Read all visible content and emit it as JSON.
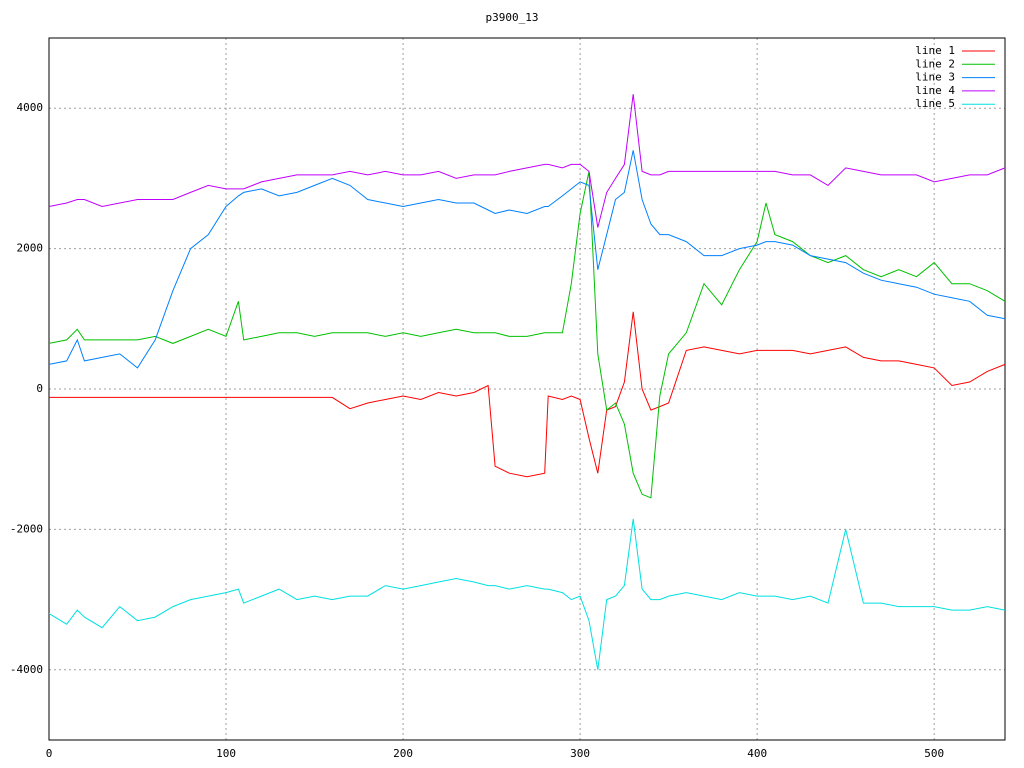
{
  "chart_data": {
    "type": "line",
    "title": "p3900_13",
    "x": [
      0,
      10,
      16,
      20,
      30,
      40,
      50,
      60,
      70,
      80,
      90,
      100,
      107,
      110,
      120,
      130,
      140,
      150,
      160,
      170,
      180,
      190,
      200,
      210,
      220,
      230,
      240,
      248,
      252,
      260,
      270,
      280,
      282,
      290,
      295,
      300,
      305,
      310,
      315,
      320,
      325,
      330,
      335,
      340,
      345,
      350,
      360,
      370,
      380,
      390,
      400,
      405,
      410,
      420,
      430,
      440,
      450,
      460,
      470,
      480,
      490,
      500,
      510,
      520,
      530,
      540
    ],
    "series": [
      {
        "name": "line 1",
        "color": "#ff0000",
        "values": [
          -120,
          -120,
          -120,
          -120,
          -120,
          -120,
          -120,
          -120,
          -120,
          -120,
          -120,
          -120,
          -120,
          -120,
          -120,
          -120,
          -120,
          -120,
          -120,
          -280,
          -200,
          -150,
          -100,
          -150,
          -50,
          -100,
          -50,
          50,
          -1100,
          -1200,
          -1250,
          -1200,
          -100,
          -150,
          -100,
          -150,
          -700,
          -1200,
          -300,
          -250,
          100,
          1100,
          0,
          -300,
          -250,
          -200,
          550,
          600,
          550,
          500,
          550,
          550,
          550,
          550,
          500,
          550,
          600,
          450,
          400,
          400,
          350,
          300,
          50,
          100,
          250,
          350
        ]
      },
      {
        "name": "line 2",
        "color": "#00c000",
        "values": [
          650,
          700,
          850,
          700,
          700,
          700,
          700,
          750,
          650,
          750,
          850,
          750,
          1250,
          700,
          750,
          800,
          800,
          750,
          800,
          800,
          800,
          750,
          800,
          750,
          800,
          850,
          800,
          800,
          800,
          750,
          750,
          800,
          800,
          800,
          1500,
          2500,
          3100,
          500,
          -300,
          -200,
          -500,
          -1200,
          -1500,
          -1550,
          -100,
          500,
          800,
          1500,
          1200,
          1700,
          2100,
          2650,
          2200,
          2100,
          1900,
          1800,
          1900,
          1700,
          1600,
          1700,
          1600,
          1800,
          1500,
          1500,
          1400,
          1250
        ]
      },
      {
        "name": "line 3",
        "color": "#0080ff",
        "values": [
          350,
          400,
          700,
          400,
          450,
          500,
          300,
          700,
          1400,
          2000,
          2200,
          2600,
          2750,
          2800,
          2850,
          2750,
          2800,
          2900,
          3000,
          2900,
          2700,
          2650,
          2600,
          2650,
          2700,
          2650,
          2650,
          2550,
          2500,
          2550,
          2500,
          2600,
          2600,
          2750,
          2850,
          2950,
          2900,
          1700,
          2200,
          2700,
          2800,
          3400,
          2700,
          2350,
          2200,
          2200,
          2100,
          1900,
          1900,
          2000,
          2050,
          2100,
          2100,
          2050,
          1900,
          1850,
          1800,
          1650,
          1550,
          1500,
          1450,
          1350,
          1300,
          1250,
          1050,
          1000
        ]
      },
      {
        "name": "line 4",
        "color": "#c000ff",
        "values": [
          2600,
          2650,
          2700,
          2700,
          2600,
          2650,
          2700,
          2700,
          2700,
          2800,
          2900,
          2850,
          2850,
          2850,
          2950,
          3000,
          3050,
          3050,
          3050,
          3100,
          3050,
          3100,
          3050,
          3050,
          3100,
          3000,
          3050,
          3050,
          3050,
          3100,
          3150,
          3200,
          3200,
          3150,
          3200,
          3200,
          3100,
          2300,
          2800,
          3000,
          3200,
          4200,
          3100,
          3050,
          3050,
          3100,
          3100,
          3100,
          3100,
          3100,
          3100,
          3100,
          3100,
          3050,
          3050,
          2900,
          3150,
          3100,
          3050,
          3050,
          3050,
          2950,
          3000,
          3050,
          3050,
          3150
        ]
      },
      {
        "name": "line 5",
        "color": "#00e0e0",
        "values": [
          -3200,
          -3350,
          -3150,
          -3250,
          -3400,
          -3100,
          -3300,
          -3250,
          -3100,
          -3000,
          -2950,
          -2900,
          -2850,
          -3050,
          -2950,
          -2850,
          -3000,
          -2950,
          -3000,
          -2950,
          -2950,
          -2800,
          -2850,
          -2800,
          -2750,
          -2700,
          -2750,
          -2800,
          -2800,
          -2850,
          -2800,
          -2850,
          -2850,
          -2900,
          -3000,
          -2950,
          -3300,
          -4000,
          -3000,
          -2950,
          -2800,
          -1850,
          -2850,
          -3000,
          -3000,
          -2950,
          -2900,
          -2950,
          -3000,
          -2900,
          -2950,
          -2950,
          -2950,
          -3000,
          -2950,
          -3050,
          -2000,
          -3050,
          -3050,
          -3100,
          -3100,
          -3100,
          -3150,
          -3150,
          -3100,
          -3150
        ]
      }
    ],
    "xlim": [
      0,
      540
    ],
    "xticks": [
      0,
      100,
      200,
      300,
      400,
      500
    ],
    "ylim": [
      -5000,
      5000
    ],
    "yticks": [
      -4000,
      -2000,
      0,
      2000,
      4000
    ],
    "grid": true,
    "legend": "top-right"
  }
}
